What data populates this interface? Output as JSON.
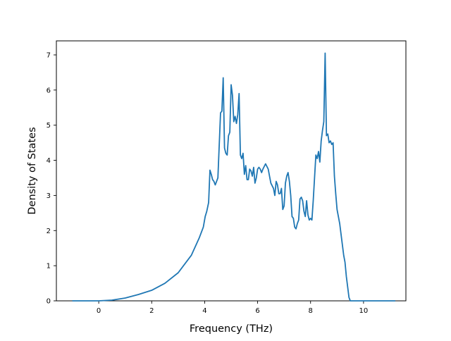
{
  "chart_data": {
    "type": "line",
    "title": "",
    "xlabel": "Frequency (THz)",
    "ylabel": "Density of States",
    "xlim": [
      -1.6,
      11.6
    ],
    "ylim": [
      0,
      7.4
    ],
    "xticks": [
      0,
      2,
      4,
      6,
      8,
      10
    ],
    "yticks": [
      0,
      1,
      2,
      3,
      4,
      5,
      6,
      7
    ],
    "xtick_labels": [
      "0",
      "2",
      "4",
      "6",
      "8",
      "10"
    ],
    "ytick_labels": [
      "0",
      "1",
      "2",
      "3",
      "4",
      "5",
      "6",
      "7"
    ],
    "grid": false,
    "legend": "none",
    "line_color": "#1f77b4",
    "series": [
      {
        "x": [
          -1.0,
          -0.5,
          0.0,
          0.5,
          1.0,
          1.5,
          2.0,
          2.5,
          3.0,
          3.5,
          3.8,
          3.95,
          4.02,
          4.08,
          4.15,
          4.2,
          4.25,
          4.3,
          4.35,
          4.4,
          4.5,
          4.6,
          4.65,
          4.7,
          4.75,
          4.8,
          4.85,
          4.9,
          4.95,
          5.0,
          5.05,
          5.1,
          5.15,
          5.2,
          5.25,
          5.3,
          5.35,
          5.4,
          5.45,
          5.5,
          5.55,
          5.6,
          5.65,
          5.7,
          5.75,
          5.8,
          5.85,
          5.9,
          5.95,
          6.0,
          6.05,
          6.1,
          6.15,
          6.2,
          6.3,
          6.4,
          6.5,
          6.6,
          6.65,
          6.7,
          6.75,
          6.8,
          6.85,
          6.9,
          6.95,
          7.0,
          7.05,
          7.1,
          7.15,
          7.2,
          7.25,
          7.3,
          7.35,
          7.4,
          7.45,
          7.5,
          7.55,
          7.6,
          7.65,
          7.7,
          7.75,
          7.8,
          7.85,
          7.9,
          7.95,
          8.0,
          8.05,
          8.1,
          8.15,
          8.2,
          8.25,
          8.3,
          8.35,
          8.4,
          8.45,
          8.5,
          8.55,
          8.6,
          8.65,
          8.7,
          8.75,
          8.8,
          8.85,
          8.9,
          8.95,
          9.0,
          9.05,
          9.1,
          9.15,
          9.2,
          9.25,
          9.3,
          9.35,
          9.4,
          9.45,
          9.5,
          9.6,
          9.7,
          9.8,
          9.9,
          10.0,
          10.05,
          10.1,
          10.2,
          10.5,
          11.0,
          11.2
        ],
        "y": [
          0,
          0,
          0,
          0.02,
          0.08,
          0.18,
          0.3,
          0.5,
          0.8,
          1.3,
          1.8,
          2.1,
          2.4,
          2.55,
          2.8,
          3.72,
          3.6,
          3.45,
          3.4,
          3.3,
          3.5,
          5.35,
          5.4,
          6.35,
          4.35,
          4.2,
          4.15,
          4.7,
          4.8,
          6.15,
          5.85,
          5.1,
          5.25,
          5.05,
          5.3,
          5.9,
          4.15,
          4.05,
          4.2,
          3.6,
          3.85,
          3.45,
          3.45,
          3.75,
          3.7,
          3.55,
          3.8,
          3.35,
          3.5,
          3.75,
          3.8,
          3.75,
          3.65,
          3.75,
          3.9,
          3.75,
          3.35,
          3.2,
          3.0,
          3.4,
          3.3,
          3.05,
          3.05,
          3.2,
          2.6,
          2.7,
          3.35,
          3.55,
          3.65,
          3.4,
          3.0,
          2.4,
          2.35,
          2.1,
          2.05,
          2.2,
          2.3,
          2.9,
          2.95,
          2.85,
          2.55,
          2.4,
          2.85,
          2.45,
          2.3,
          2.35,
          2.3,
          2.85,
          3.5,
          4.15,
          4.05,
          4.25,
          3.95,
          4.55,
          4.85,
          5.1,
          7.05,
          4.7,
          4.75,
          4.5,
          4.55,
          4.45,
          4.5,
          3.55,
          3.05,
          2.6,
          2.4,
          2.2,
          1.9,
          1.6,
          1.3,
          1.1,
          0.7,
          0.4,
          0.1,
          0,
          0,
          0,
          0,
          0,
          0,
          0,
          0,
          0,
          0,
          0,
          0
        ]
      }
    ]
  }
}
